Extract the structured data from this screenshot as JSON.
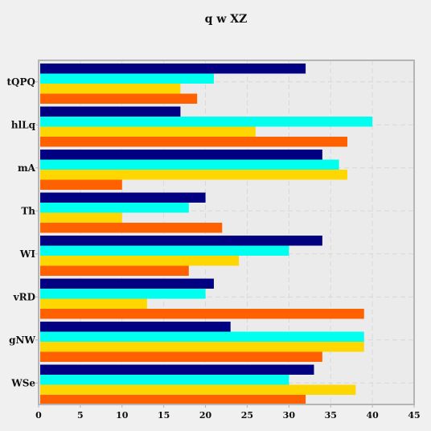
{
  "chart_data": {
    "type": "bar",
    "orientation": "horizontal",
    "title": "q w XZ",
    "xlabel": "",
    "ylabel": "",
    "categories": [
      "tQPQ",
      "hlLq",
      "mA",
      "Th",
      "WI",
      "vRD",
      "gNW",
      "WSe"
    ],
    "series": [
      {
        "color": "#000080",
        "values": [
          32,
          17,
          34,
          20,
          34,
          21,
          23,
          33
        ]
      },
      {
        "color": "#00ffee",
        "values": [
          21,
          40,
          36,
          18,
          30,
          20,
          39,
          30
        ]
      },
      {
        "color": "#ffd700",
        "values": [
          17,
          26,
          37,
          10,
          24,
          13,
          39,
          38
        ]
      },
      {
        "color": "#ff6000",
        "values": [
          19,
          37,
          10,
          22,
          18,
          39,
          34,
          32
        ]
      }
    ],
    "xlim": [
      0,
      45
    ],
    "xticks": [
      0,
      5,
      10,
      15,
      20,
      25,
      30,
      35,
      40,
      45
    ],
    "grid": true,
    "legend": "none"
  },
  "style": {
    "background": "#f0f0f0",
    "plot_background": "#ebebeb",
    "grid_color": "#d8d8d8",
    "axis_color": "#b5b5b5"
  }
}
